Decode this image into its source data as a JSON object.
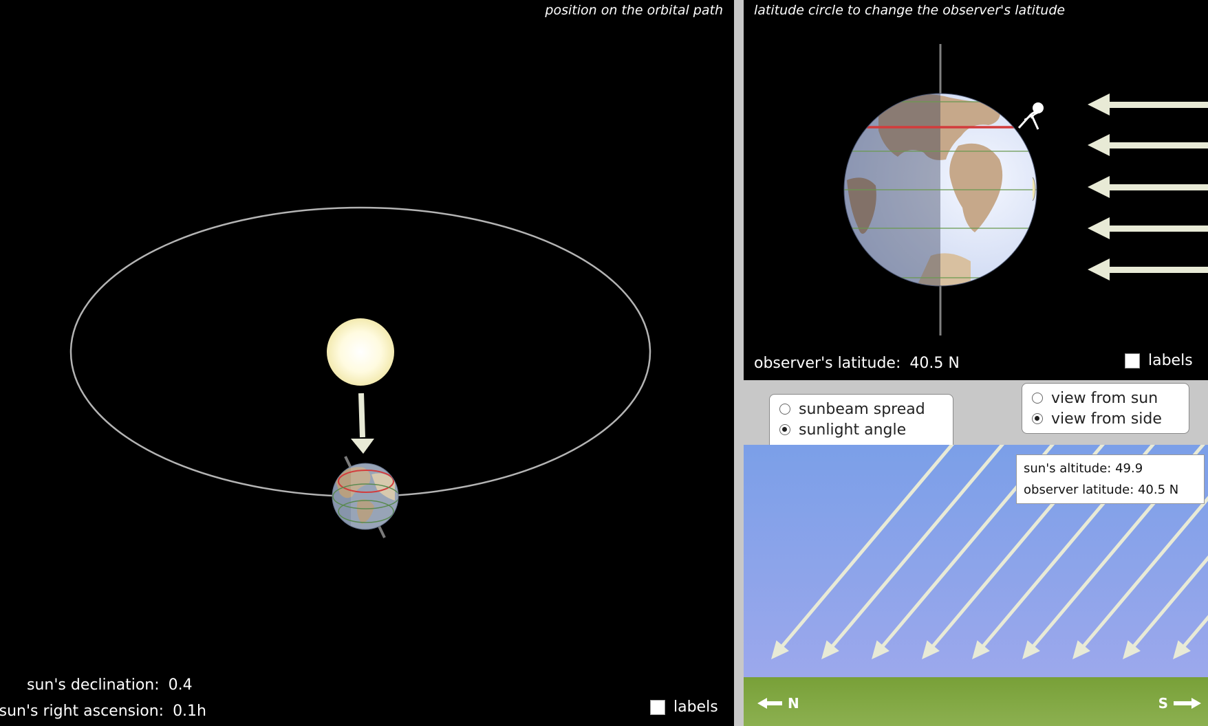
{
  "orbit_view": {
    "instruction_tail": "position on the orbital path",
    "declination_label": "sun's declination:",
    "declination_value": "0.4",
    "ascension_label": "sun's right ascension:",
    "ascension_value": "0.1h",
    "labels_checkbox": "labels",
    "labels_checked": false
  },
  "earth_view": {
    "instruction_tail": "latitude circle to change the observer's latitude",
    "latitude_label": "observer's latitude:",
    "latitude_value": "40.5 N",
    "labels_checkbox": "labels",
    "labels_checked": false
  },
  "mode_options": {
    "items": [
      {
        "label": "sunbeam spread",
        "selected": false
      },
      {
        "label": "sunlight angle",
        "selected": true
      }
    ]
  },
  "view_options": {
    "items": [
      {
        "label": "view from sun",
        "selected": false
      },
      {
        "label": "view from side",
        "selected": true
      }
    ]
  },
  "sunlight_angle": {
    "altitude_text": "sun's altitude: 49.9",
    "latitude_text": "observer latitude: 40.5 N",
    "north_label": "N",
    "south_label": "S"
  },
  "colors": {
    "sky_top": "#7b9fe8",
    "sky_bottom": "#9aa8ec",
    "ground": "#7fa640",
    "sunbeam": "#e8ead6",
    "orbit": "#b4b4b4",
    "latitude_line": "#d23c3c"
  }
}
